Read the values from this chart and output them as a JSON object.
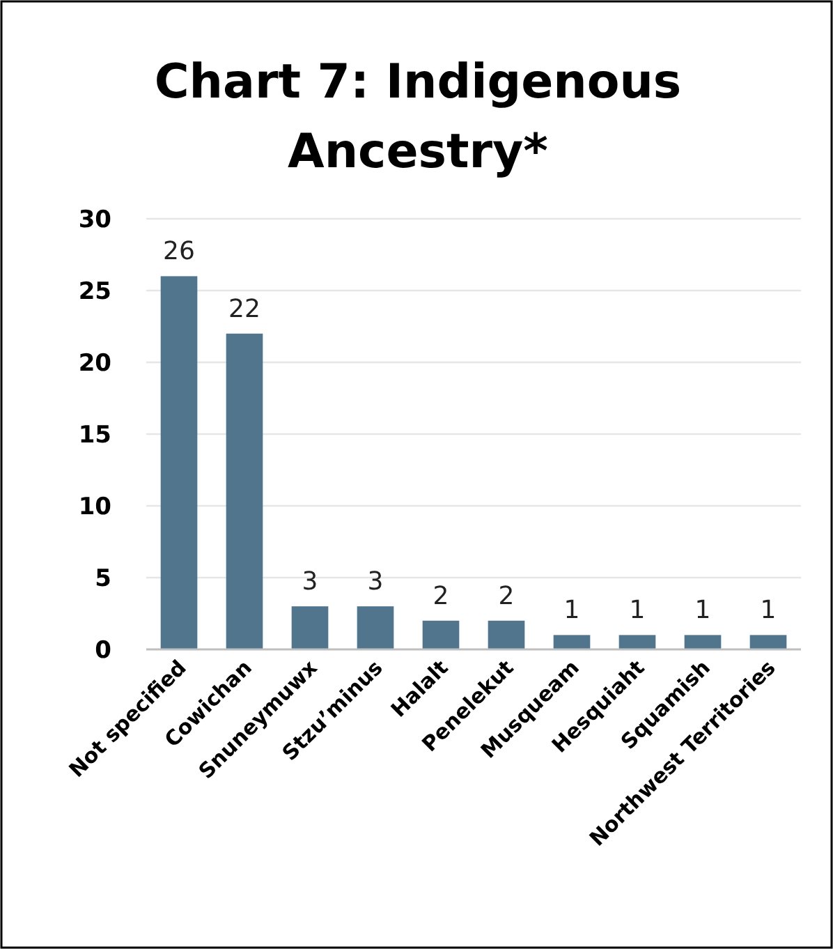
{
  "chart_data": {
    "type": "bar",
    "title": "Chart 7: Indigenous Ancestry*",
    "categories": [
      "Not specified",
      "Cowichan",
      "Snuneymuwx",
      "Stzu’minus",
      "Halalt",
      "Penelekut",
      "Musqueam",
      "Hesquiaht",
      "Squamish",
      "Northwest Territories"
    ],
    "values": [
      26,
      22,
      3,
      3,
      2,
      2,
      1,
      1,
      1,
      1
    ],
    "color": "#50758d",
    "ylim": [
      0,
      30
    ],
    "yticks": [
      0,
      5,
      10,
      15,
      20,
      25,
      30
    ],
    "grid": "y",
    "data_labels": true
  }
}
